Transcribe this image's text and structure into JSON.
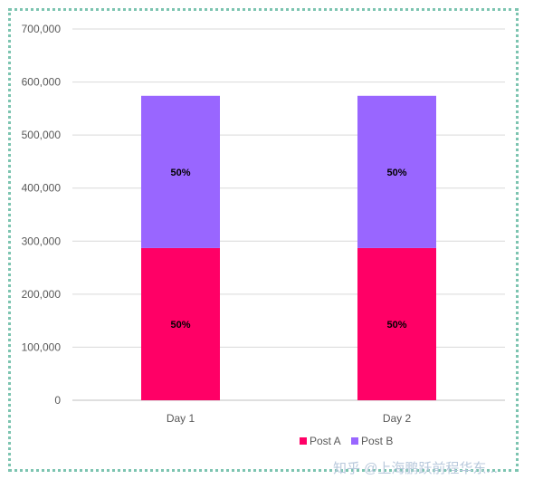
{
  "chart_data": {
    "type": "bar",
    "stacked": true,
    "categories": [
      "Day 1",
      "Day 2"
    ],
    "series": [
      {
        "name": "Post A",
        "values": [
          287000,
          287000
        ],
        "labels": [
          "50%",
          "50%"
        ],
        "color": "#ff0066"
      },
      {
        "name": "Post B",
        "values": [
          287000,
          287000
        ],
        "labels": [
          "50%",
          "50%"
        ],
        "color": "#9966ff"
      }
    ],
    "ylim": [
      0,
      700000
    ],
    "yticks": [
      0,
      100000,
      200000,
      300000,
      400000,
      500000,
      600000,
      700000
    ],
    "ytick_labels": [
      "0",
      "100,000",
      "200,000",
      "300,000",
      "400,000",
      "500,000",
      "600,000",
      "700,000"
    ],
    "grid": true,
    "legend_position": "bottom",
    "title": "",
    "xlabel": "",
    "ylabel": ""
  },
  "watermark": "知乎 @上海鹏跃前程华东...",
  "colors": {
    "gridline": "#d9d9d9",
    "axis": "#bfbfbf",
    "frame": "#7cc4b0"
  }
}
